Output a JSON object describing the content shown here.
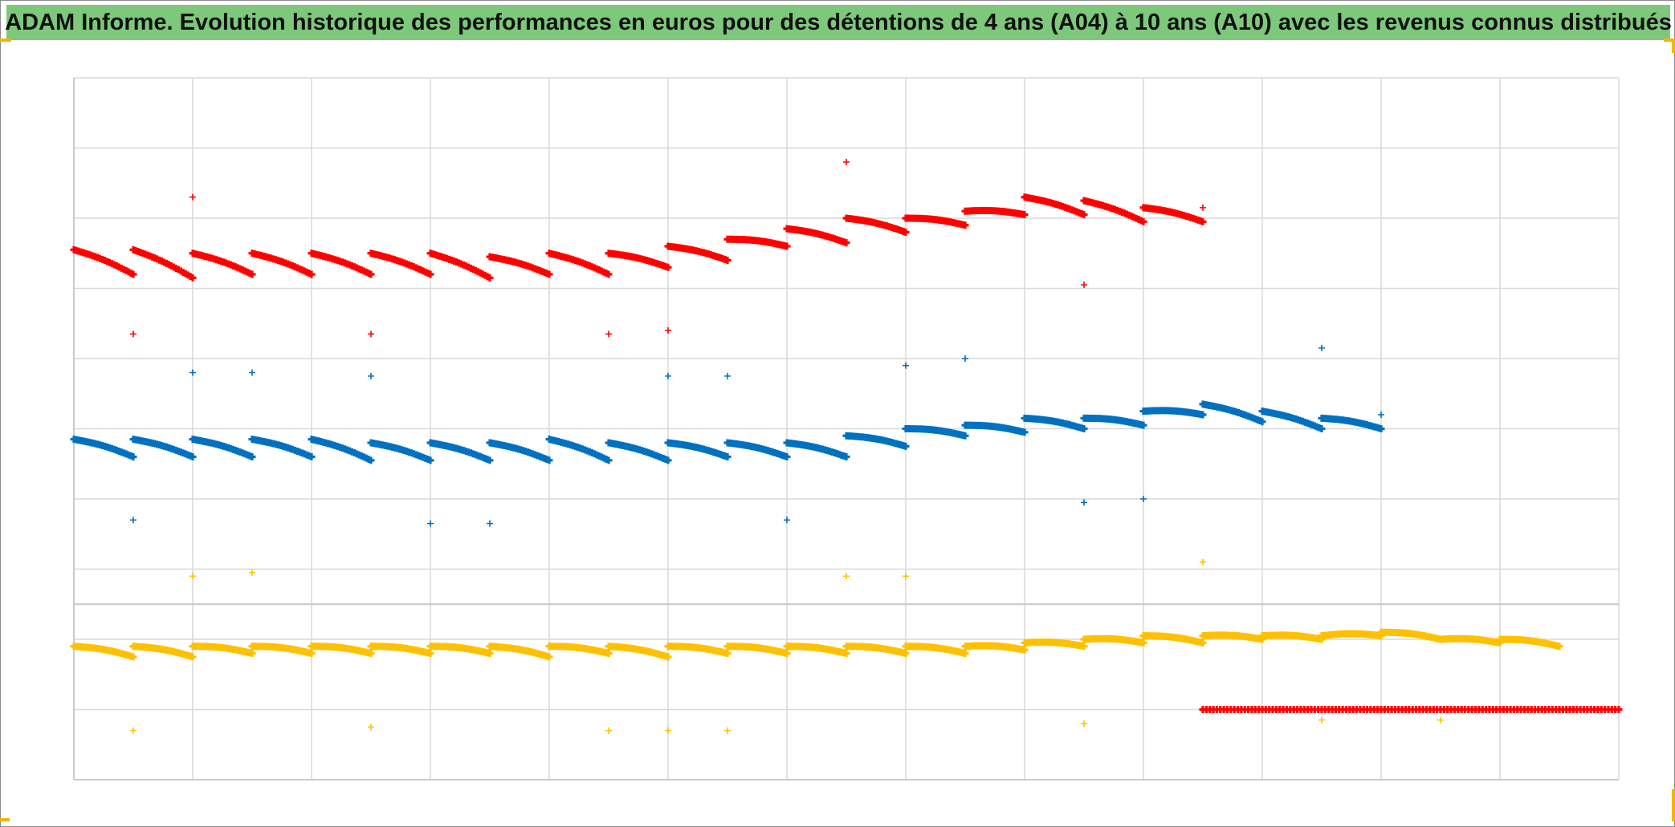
{
  "title": "ADAM Informe. Evolution historique des performances en euros pour des détentions de 4 ans (A04) à 10 ans (A10) avec les revenus connus distribués",
  "colors": {
    "red": "#ff0000",
    "blue": "#0070c0",
    "yellow": "#ffc000",
    "title_bg": "#7ec87b",
    "grid": "#d9d9d9"
  },
  "chart_data": {
    "type": "scatter",
    "title": "ADAM Informe. Evolution historique des performances en euros pour des détentions de 4 ans (A04) à 10 ans (A10) avec les revenus connus distribués",
    "xlabel": "",
    "ylabel": "",
    "xlim": [
      0,
      13
    ],
    "ylim": [
      0,
      10
    ],
    "grid": true,
    "legend": "none",
    "marker": "+",
    "series": [
      {
        "color": "#ff0000",
        "segments": [
          [
            0.0,
            7.55,
            0.5,
            7.2
          ],
          [
            0.5,
            7.55,
            1.0,
            7.15
          ],
          [
            1.0,
            7.5,
            1.5,
            7.2
          ],
          [
            1.5,
            7.5,
            2.0,
            7.2
          ],
          [
            2.0,
            7.5,
            2.5,
            7.2
          ],
          [
            2.5,
            7.5,
            3.0,
            7.2
          ],
          [
            3.0,
            7.5,
            3.5,
            7.15
          ],
          [
            3.5,
            7.45,
            4.0,
            7.2
          ],
          [
            4.0,
            7.5,
            4.5,
            7.2
          ],
          [
            4.5,
            7.5,
            5.0,
            7.3
          ],
          [
            5.0,
            7.6,
            5.5,
            7.4
          ],
          [
            5.5,
            7.7,
            6.0,
            7.6
          ],
          [
            6.0,
            7.85,
            6.5,
            7.65
          ],
          [
            6.5,
            8.0,
            7.0,
            7.8
          ],
          [
            7.0,
            8.0,
            7.5,
            7.9
          ],
          [
            7.5,
            8.1,
            8.0,
            8.05
          ],
          [
            8.0,
            8.3,
            8.5,
            8.05
          ],
          [
            8.5,
            8.25,
            9.0,
            7.95
          ],
          [
            9.0,
            8.15,
            9.5,
            7.95
          ]
        ],
        "outliers": [
          [
            1.0,
            8.3
          ],
          [
            0.5,
            6.35
          ],
          [
            2.5,
            6.35
          ],
          [
            4.5,
            6.35
          ],
          [
            5.0,
            6.4
          ],
          [
            6.5,
            8.8
          ],
          [
            8.5,
            7.05
          ],
          [
            9.5,
            8.15
          ]
        ],
        "baseline": [
          9.5,
          1.0,
          13.0,
          1.0
        ]
      },
      {
        "color": "#0070c0",
        "segments": [
          [
            0.0,
            4.85,
            0.5,
            4.6
          ],
          [
            0.5,
            4.85,
            1.0,
            4.6
          ],
          [
            1.0,
            4.85,
            1.5,
            4.6
          ],
          [
            1.5,
            4.85,
            2.0,
            4.6
          ],
          [
            2.0,
            4.85,
            2.5,
            4.55
          ],
          [
            2.5,
            4.8,
            3.0,
            4.55
          ],
          [
            3.0,
            4.8,
            3.5,
            4.55
          ],
          [
            3.5,
            4.8,
            4.0,
            4.55
          ],
          [
            4.0,
            4.85,
            4.5,
            4.55
          ],
          [
            4.5,
            4.8,
            5.0,
            4.55
          ],
          [
            5.0,
            4.8,
            5.5,
            4.6
          ],
          [
            5.5,
            4.8,
            6.0,
            4.6
          ],
          [
            6.0,
            4.8,
            6.5,
            4.6
          ],
          [
            6.5,
            4.9,
            7.0,
            4.75
          ],
          [
            7.0,
            5.0,
            7.5,
            4.9
          ],
          [
            7.5,
            5.05,
            8.0,
            4.95
          ],
          [
            8.0,
            5.15,
            8.5,
            5.0
          ],
          [
            8.5,
            5.15,
            9.0,
            5.05
          ],
          [
            9.0,
            5.25,
            9.5,
            5.2
          ],
          [
            9.5,
            5.35,
            10.0,
            5.1
          ],
          [
            10.0,
            5.25,
            10.5,
            5.0
          ],
          [
            10.5,
            5.15,
            11.0,
            5.0
          ]
        ],
        "outliers": [
          [
            1.0,
            5.8
          ],
          [
            1.5,
            5.8
          ],
          [
            2.5,
            5.75
          ],
          [
            5.0,
            5.75
          ],
          [
            5.5,
            5.75
          ],
          [
            7.0,
            5.9
          ],
          [
            7.5,
            6.0
          ],
          [
            10.5,
            6.15
          ],
          [
            0.5,
            3.7
          ],
          [
            3.0,
            3.65
          ],
          [
            3.5,
            3.65
          ],
          [
            6.0,
            3.7
          ],
          [
            8.5,
            3.95
          ],
          [
            9.0,
            4.0
          ],
          [
            11.0,
            5.2
          ]
        ]
      },
      {
        "color": "#ffc000",
        "segments": [
          [
            0.0,
            1.9,
            0.5,
            1.75
          ],
          [
            0.5,
            1.9,
            1.0,
            1.75
          ],
          [
            1.0,
            1.9,
            1.5,
            1.8
          ],
          [
            1.5,
            1.9,
            2.0,
            1.8
          ],
          [
            2.0,
            1.9,
            2.5,
            1.8
          ],
          [
            2.5,
            1.9,
            3.0,
            1.8
          ],
          [
            3.0,
            1.9,
            3.5,
            1.8
          ],
          [
            3.5,
            1.9,
            4.0,
            1.75
          ],
          [
            4.0,
            1.9,
            4.5,
            1.8
          ],
          [
            4.5,
            1.9,
            5.0,
            1.75
          ],
          [
            5.0,
            1.9,
            5.5,
            1.8
          ],
          [
            5.5,
            1.9,
            6.0,
            1.8
          ],
          [
            6.0,
            1.9,
            6.5,
            1.8
          ],
          [
            6.5,
            1.9,
            7.0,
            1.8
          ],
          [
            7.0,
            1.9,
            7.5,
            1.8
          ],
          [
            7.5,
            1.9,
            8.0,
            1.85
          ],
          [
            8.0,
            1.95,
            8.5,
            1.9
          ],
          [
            8.5,
            2.0,
            9.0,
            1.95
          ],
          [
            9.0,
            2.05,
            9.5,
            1.95
          ],
          [
            9.5,
            2.05,
            10.0,
            2.0
          ],
          [
            10.0,
            2.05,
            10.5,
            2.0
          ],
          [
            10.5,
            2.05,
            11.0,
            2.05
          ],
          [
            11.0,
            2.1,
            11.5,
            2.0
          ],
          [
            11.5,
            2.0,
            12.0,
            1.95
          ],
          [
            12.0,
            2.0,
            12.5,
            1.9
          ]
        ],
        "outliers": [
          [
            1.0,
            2.9
          ],
          [
            1.5,
            2.95
          ],
          [
            6.5,
            2.9
          ],
          [
            7.0,
            2.9
          ],
          [
            9.5,
            3.1
          ],
          [
            0.5,
            0.7
          ],
          [
            2.5,
            0.75
          ],
          [
            4.5,
            0.7
          ],
          [
            5.0,
            0.7
          ],
          [
            5.5,
            0.7
          ],
          [
            8.5,
            0.8
          ],
          [
            10.5,
            0.85
          ],
          [
            11.5,
            0.85
          ]
        ]
      }
    ]
  }
}
